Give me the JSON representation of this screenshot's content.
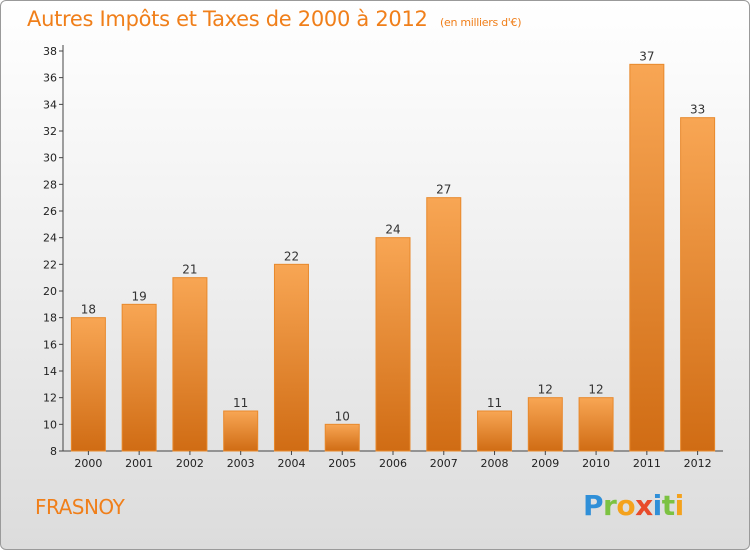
{
  "header": {
    "title": "Autres Impôts et Taxes de 2000 à 2012",
    "unit": "(en milliers d'€)"
  },
  "footer": {
    "commune": "FRASNOY",
    "logo_letters": [
      "P",
      "r",
      "o",
      "x",
      "i",
      "t",
      "i"
    ],
    "logo_colors": [
      "#2f8fd8",
      "#7cc242",
      "#f4a21d",
      "#e84b2b",
      "#2f8fd8",
      "#7cc242",
      "#f4a21d"
    ]
  },
  "colors": {
    "bar_light": "#f8a654",
    "bar_dark": "#d06c14",
    "title": "#f07f1a",
    "grid": "#cfcfcf"
  },
  "chart_data": {
    "type": "bar",
    "title": "Autres Impôts et Taxes de 2000 à 2012",
    "subtitle": "(en milliers d'€)",
    "xlabel": "",
    "ylabel": "",
    "categories": [
      "2000",
      "2001",
      "2002",
      "2003",
      "2004",
      "2005",
      "2006",
      "2007",
      "2008",
      "2009",
      "2010",
      "2011",
      "2012"
    ],
    "values": [
      18,
      19,
      21,
      11,
      22,
      10,
      24,
      27,
      11,
      12,
      12,
      37,
      33
    ],
    "ylim": [
      8,
      38
    ],
    "yticks": [
      8,
      10,
      12,
      14,
      16,
      18,
      20,
      22,
      24,
      26,
      28,
      30,
      32,
      34,
      36,
      38
    ],
    "grid": false
  }
}
